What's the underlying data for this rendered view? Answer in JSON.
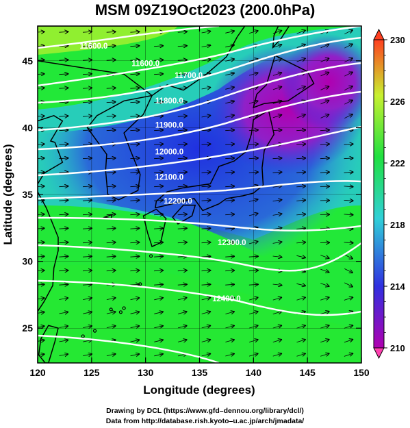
{
  "title": "MSM 09Z19Oct2023 (200.0hPa)",
  "x_axis": {
    "label": "Longitude (degrees)",
    "range": [
      120,
      150
    ],
    "ticks": [
      120,
      125,
      130,
      135,
      140,
      145,
      150
    ]
  },
  "y_axis": {
    "label": "Latitude  (degrees)",
    "range": [
      22.4,
      47.6
    ],
    "ticks": [
      25,
      30,
      35,
      40,
      45
    ]
  },
  "colorbar": {
    "ticks": [
      210,
      214,
      218,
      222,
      226,
      230
    ],
    "range": [
      210,
      230
    ],
    "colors": [
      "#b000b0",
      "#3030e0",
      "#30d0d8",
      "#20e040",
      "#c8f030",
      "#ff4020"
    ]
  },
  "contours": [
    {
      "label": "11600.0",
      "label_lon": 124.5
    },
    {
      "label": "11600.0",
      "label_lon": 129.8
    },
    {
      "label": "11700.0",
      "label_lon": 133.8
    },
    {
      "label": "11800.0",
      "label_lon": 131.6
    },
    {
      "label": "11900.0",
      "label_lon": 131.8
    },
    {
      "label": "12000.0",
      "label_lon": 132.0
    },
    {
      "label": "12100.0",
      "label_lon": 132.0
    },
    {
      "label": "12200.0",
      "label_lon": 132.5
    },
    {
      "label": "12300.0",
      "label_lon": 138.0
    },
    {
      "label": "12400.0",
      "label_lon": 137.5
    }
  ],
  "credits": {
    "line1": "Drawing by DCL (https://www.gfd–dennou.org/library/dcl/)",
    "line2": "Data from http://database.rish.kyoto–u.ac.jp/arch/jmadata/"
  }
}
